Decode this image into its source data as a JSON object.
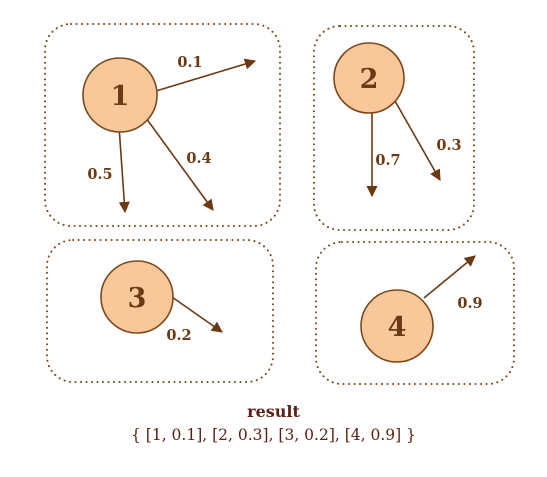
{
  "colors": {
    "node_fill": "#f8c89a",
    "node_stroke": "#7a4a1e",
    "edge": "#6b3a14",
    "label": "#6b3a14",
    "result_text": "#5a1f14"
  },
  "nodes": [
    {
      "label": "1"
    },
    {
      "label": "2"
    },
    {
      "label": "3"
    },
    {
      "label": "4"
    }
  ],
  "edges": [
    {
      "from": "1",
      "weight": "0.1"
    },
    {
      "from": "1",
      "weight": "0.5"
    },
    {
      "from": "1",
      "weight": "0.4"
    },
    {
      "from": "2",
      "weight": "0.7"
    },
    {
      "from": "2",
      "weight": "0.3"
    },
    {
      "from": "3",
      "weight": "0.2"
    },
    {
      "from": "4",
      "weight": "0.9"
    }
  ],
  "result": {
    "title": "result",
    "value": "{ [1, 0.1], [2, 0.3], [3, 0.2], [4, 0.9] }"
  }
}
